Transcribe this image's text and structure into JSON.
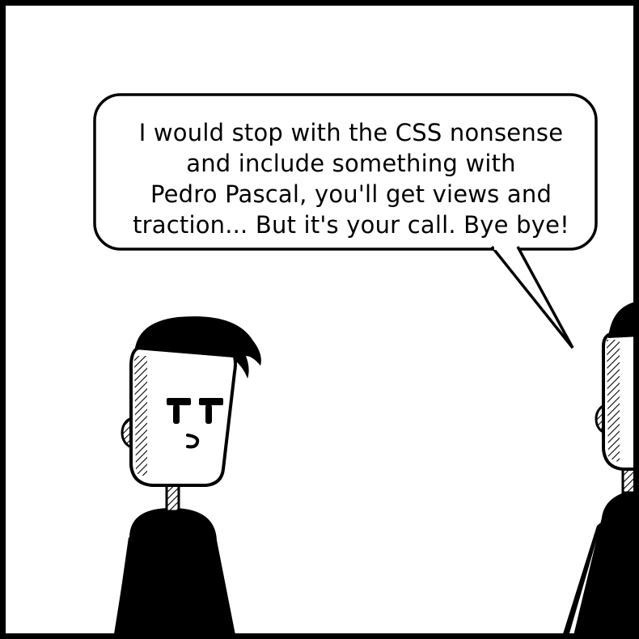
{
  "comic_panel": {
    "speech_bubble": {
      "lines": [
        "I would stop with the CSS nonsense",
        "and include something with",
        "Pedro Pascal, you'll get views and",
        "traction... But it's your call. Bye bye!"
      ]
    }
  },
  "colors": {
    "ink": "#000000",
    "paper": "#ffffff"
  }
}
